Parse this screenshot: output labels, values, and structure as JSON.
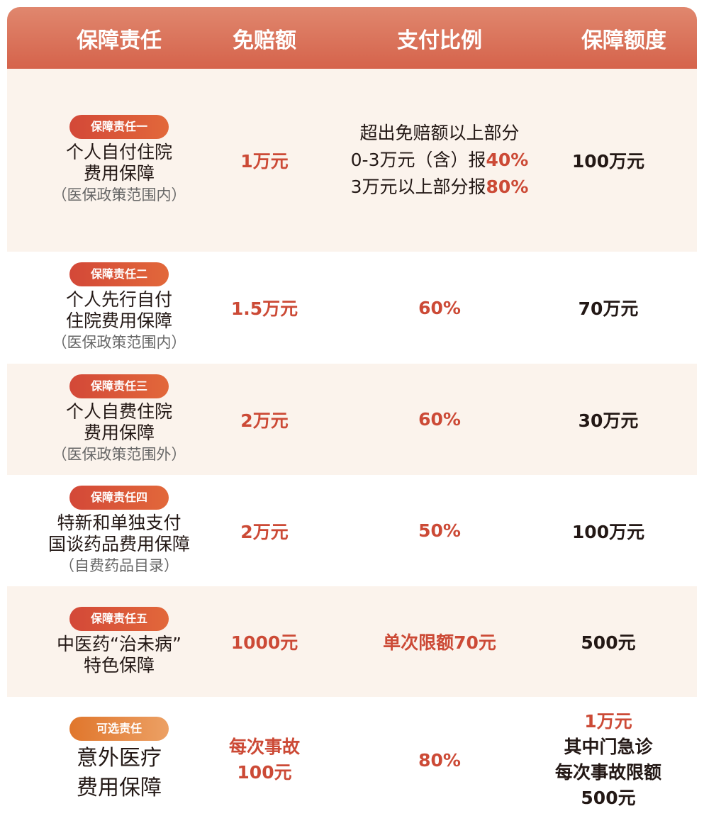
{
  "header": [
    "保障责任",
    "免赔额",
    "支付比例",
    "保障额度"
  ],
  "rows": [
    {
      "badge": "保障责任一",
      "name": [
        "个人自付住院",
        "费用保障"
      ],
      "sub": "（医保政策范围内）",
      "deductible": "1万元",
      "payment_lines": [
        {
          "text": "超出免赔额以上部分",
          "hl": ""
        },
        {
          "text": "0-3万元（含）报",
          "hl": "40%"
        },
        {
          "text": "3万元以上部分报",
          "hl": "80%"
        }
      ],
      "limit": "100万元"
    },
    {
      "badge": "保障责任二",
      "name": [
        "个人先行自付",
        "住院费用保障"
      ],
      "sub": "（医保政策范围内）",
      "deductible": "1.5万元",
      "payment": "60%",
      "limit": "70万元"
    },
    {
      "badge": "保障责任三",
      "name": [
        "个人自费住院",
        "费用保障"
      ],
      "sub": "（医保政策范围外）",
      "deductible": "2万元",
      "payment": "60%",
      "limit": "30万元"
    },
    {
      "badge": "保障责任四",
      "name": [
        "特新和单独支付",
        "国谈药品费用保障"
      ],
      "sub": "（自费药品目录）",
      "deductible": "2万元",
      "payment": "50%",
      "limit": "100万元"
    },
    {
      "badge": "保障责任五",
      "name": [
        "中医药“治未病”",
        "特色保障"
      ],
      "deductible": "1000元",
      "payment": "单次限额70元",
      "limit": "500元"
    },
    {
      "badge": "可选责任",
      "name": [
        "意外医疗",
        "费用保障"
      ],
      "deductible_lines": [
        "每次事故",
        "100元"
      ],
      "payment": "80%",
      "limit_lines": [
        "1万元",
        "其中门急诊",
        "每次事故限额",
        "500元"
      ]
    }
  ],
  "colors": {
    "header": "#d96e55",
    "accent_red": "#cc4a36",
    "cream": "#fbf3ec",
    "optional_badge": "#e5853f"
  }
}
